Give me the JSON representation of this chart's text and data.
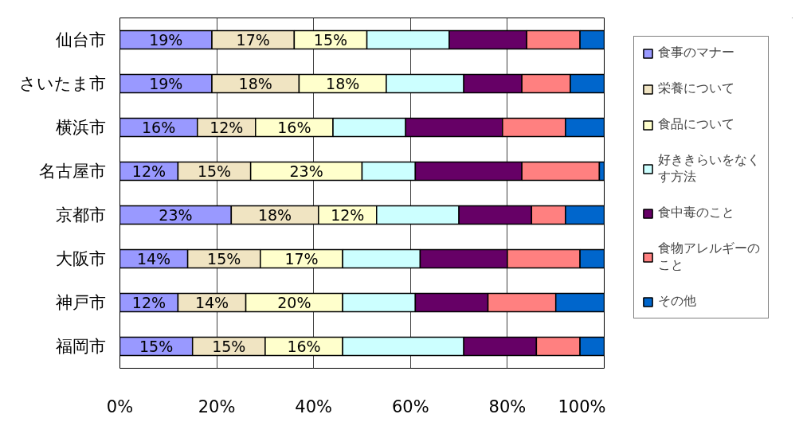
{
  "chart_data": {
    "type": "bar",
    "orientation": "horizontal",
    "stacked": true,
    "categories": [
      "仙台市",
      "さいたま市",
      "横浜市",
      "名古屋市",
      "京都市",
      "大阪市",
      "神戸市",
      "福岡市"
    ],
    "series": [
      {
        "name": "食事のマナー",
        "color": "#9999ff",
        "values": [
          19,
          19,
          16,
          12,
          23,
          14,
          12,
          15
        ],
        "value_labels": [
          "19%",
          "19%",
          "16%",
          "12%",
          "23%",
          "14%",
          "12%",
          "15%"
        ]
      },
      {
        "name": "栄養について",
        "color": "#f0e4c2",
        "values": [
          17,
          18,
          12,
          15,
          18,
          15,
          14,
          15
        ],
        "value_labels": [
          "17%",
          "18%",
          "12%",
          "15%",
          "18%",
          "15%",
          "14%",
          "15%"
        ]
      },
      {
        "name": "食品について",
        "color": "#ffffcc",
        "values": [
          15,
          18,
          16,
          23,
          12,
          17,
          20,
          16
        ],
        "value_labels": [
          "15%",
          "18%",
          "16%",
          "23%",
          "12%",
          "17%",
          "20%",
          "16%"
        ]
      },
      {
        "name": "好ききらいをなくす方法",
        "color": "#ccffff",
        "values": [
          17,
          16,
          15,
          11,
          17,
          16,
          15,
          25
        ]
      },
      {
        "name": "食中毒のこと",
        "color": "#660066",
        "values": [
          16,
          12,
          20,
          22,
          15,
          18,
          15,
          15
        ]
      },
      {
        "name": "食物アレルギーのこと",
        "color": "#ff8080",
        "values": [
          11,
          10,
          13,
          16,
          7,
          15,
          14,
          9
        ]
      },
      {
        "name": "その他",
        "color": "#0066cc",
        "values": [
          5,
          7,
          8,
          1,
          8,
          5,
          10,
          5
        ]
      }
    ],
    "xlim": [
      0,
      100
    ],
    "xticks": [
      {
        "value": 0,
        "label": "0%"
      },
      {
        "value": 20,
        "label": "20%"
      },
      {
        "value": 40,
        "label": "40%"
      },
      {
        "value": 60,
        "label": "60%"
      },
      {
        "value": 80,
        "label": "80%"
      },
      {
        "value": 100,
        "label": "100%"
      }
    ],
    "grid": "x",
    "legend": "right"
  }
}
